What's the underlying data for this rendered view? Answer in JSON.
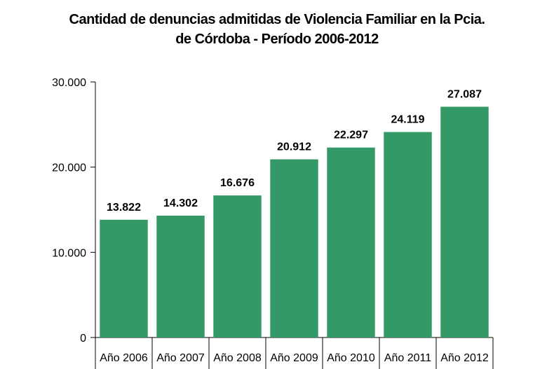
{
  "chart_data": {
    "type": "bar",
    "title_line1": "Cantidad de denuncias admitidas de Violencia Familiar en la Pcia.",
    "title_line2": "de Córdoba - Período 2006-2012",
    "categories": [
      "Año 2006",
      "Año 2007",
      "Año 2008",
      "Año 2009",
      "Año 2010",
      "Año 2011",
      "Año 2012"
    ],
    "values": [
      13822,
      14302,
      16676,
      20912,
      22297,
      24119,
      27087
    ],
    "data_labels": [
      "13.822",
      "14.302",
      "16.676",
      "20.912",
      "22.297",
      "24.119",
      "27.087"
    ],
    "yticks": [
      0,
      10000,
      20000,
      30000
    ],
    "ytick_labels": [
      "0",
      "10.000",
      "20.000",
      "30.000"
    ],
    "ylim": [
      0,
      30000
    ],
    "grid": false,
    "legend": "none",
    "xlabel": "",
    "ylabel": "",
    "bar_color": "#339966"
  }
}
